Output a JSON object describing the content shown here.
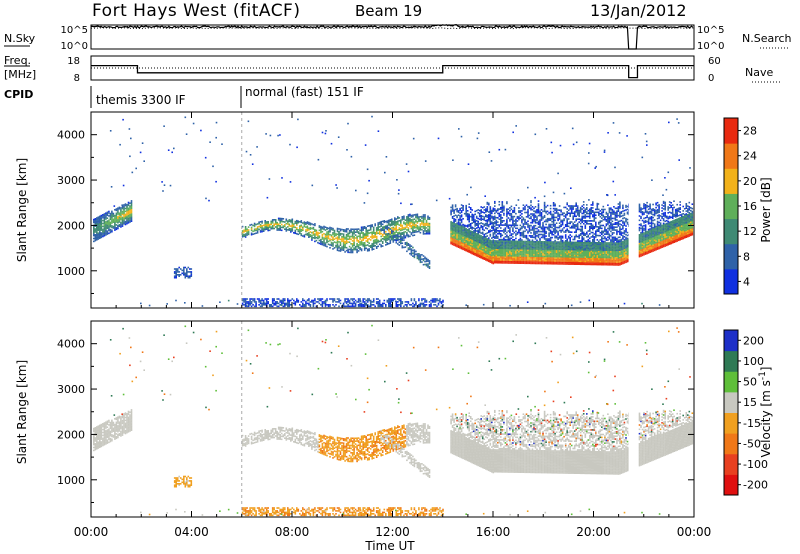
{
  "header": {
    "station": "Fort Hays West (fitACF)",
    "beam": "Beam 19",
    "date": "13/Jan/2012"
  },
  "strip_labels": {
    "nsky": "N.Sky",
    "nsky_tick_top": "10^5",
    "nsky_tick_bottom": "10^0",
    "nsky_right_top": "10^5",
    "nsky_right_bottom": "10^0",
    "nsearch": "N.Search",
    "freq_line1": "Freq.",
    "freq_line2": "[MHz]",
    "freq_tick_top": "18",
    "freq_tick_bottom": "8",
    "nave_tick_top": "60",
    "nave_tick_bottom": "0",
    "nave": "Nave",
    "cpid": "CPID"
  },
  "cpid_segments": [
    {
      "label": "themis 3300 IF",
      "start_hour": 0
    },
    {
      "label": "normal (fast) 151 IF",
      "start_hour": 6
    }
  ],
  "power_panel": {
    "ylabel": "Slant Range [km]",
    "yticks": [
      "1000",
      "2000",
      "3000",
      "4000"
    ],
    "colorbar_label": "Power [dB]",
    "colorbar_ticks": [
      "4",
      "8",
      "12",
      "16",
      "20",
      "24",
      "28"
    ],
    "colorbar_colors": [
      "#1030e0",
      "#2f62a8",
      "#3f8a74",
      "#5faf5a",
      "#f2b21a",
      "#f07818",
      "#e82a10"
    ]
  },
  "velocity_panel": {
    "ylabel": "Slant Range [km]",
    "yticks": [
      "1000",
      "2000",
      "3000",
      "4000"
    ],
    "colorbar_label": "Velocity [m s^-1]",
    "colorbar_ticks": [
      "200",
      "100",
      "50",
      "15",
      "-15",
      "-50",
      "-100",
      "-200"
    ],
    "colorbar_colors": [
      "#1d2fc8",
      "#2f7a55",
      "#5fbf3a",
      "#c8c8c0",
      "#f0a020",
      "#f07818",
      "#e84020",
      "#e01010"
    ]
  },
  "xaxis": {
    "label": "Time UT",
    "ticks": [
      "00:00",
      "04:00",
      "08:00",
      "12:00",
      "16:00",
      "20:00",
      "00:00"
    ]
  },
  "chart_data": {
    "type": "heatmap",
    "title": "Fort Hays West (fitACF)",
    "xlabel": "Time UT",
    "ylabel": "Slant Range [km]",
    "x_range_hours": [
      0,
      24
    ],
    "y_range_km": [
      180,
      4500
    ],
    "power_range_db": [
      0,
      30
    ],
    "velocity_range": [
      -250,
      250
    ],
    "power_features": [
      {
        "name": "early echo",
        "t_start": 0.1,
        "t_end": 1.6,
        "range_start_km": 1700,
        "range_end_km": 2500,
        "peak_db": 16
      },
      {
        "name": "small patch",
        "t_start": 3.3,
        "t_end": 4.0,
        "range_start_km": 850,
        "range_end_km": 1050,
        "peak_db": 8
      },
      {
        "name": "midday bands",
        "t_start": 6.0,
        "t_end": 13.5,
        "range_start_km": 1500,
        "range_end_km": 2200,
        "peak_db": 16
      },
      {
        "name": "evening arc",
        "t_start": 14.3,
        "t_end": 23.9,
        "range_start_km": 1100,
        "range_end_km": 2500,
        "peak_db": 28
      }
    ],
    "velocity_features": [
      {
        "name": "early echo",
        "t_start": 0.1,
        "t_end": 1.6,
        "mean_velocity": 0
      },
      {
        "name": "midday bands",
        "t_start": 6.0,
        "t_end": 13.5,
        "mean_velocity": -40
      },
      {
        "name": "near-range band",
        "t_start": 6.0,
        "t_end": 14.0,
        "mean_velocity": -45
      },
      {
        "name": "evening arc",
        "t_start": 14.3,
        "t_end": 23.9,
        "mean_velocity": -5
      }
    ],
    "nsky_log10": 4.8,
    "freq_mhz_segments": [
      {
        "t_start": 0,
        "t_end": 1.85,
        "freq": 14
      },
      {
        "t_start": 1.85,
        "t_end": 14.0,
        "freq": 11
      },
      {
        "t_start": 14.0,
        "t_end": 21.4,
        "freq": 14
      },
      {
        "t_start": 21.4,
        "t_end": 21.75,
        "freq": 9
      },
      {
        "t_start": 21.75,
        "t_end": 24,
        "freq": 14
      }
    ],
    "nave": 30,
    "data_gap_hours": [
      21.4,
      21.75
    ]
  }
}
